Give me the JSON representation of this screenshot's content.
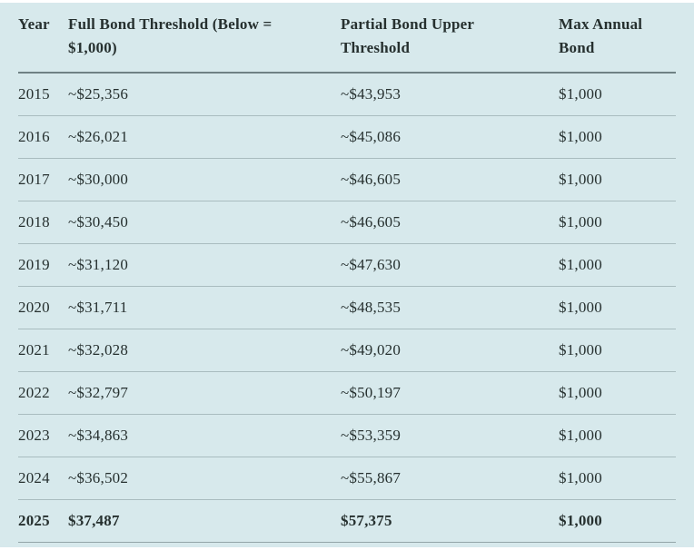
{
  "colors": {
    "background": "#d7e9ec",
    "text": "#26302f",
    "header_rule": "#6f8184",
    "row_rule": "#a9bcbf",
    "bottom_rule": "#93a5a8"
  },
  "table": {
    "columns": [
      {
        "key": "year",
        "label": "Year"
      },
      {
        "key": "full",
        "label": "Full Bond Threshold (Below = $1,000)"
      },
      {
        "key": "partial",
        "label": "Partial Bond Upper Threshold"
      },
      {
        "key": "max",
        "label": "Max Annual Bond"
      }
    ],
    "rows": [
      {
        "cells": [
          "2015",
          "~$25,356",
          "~$43,953",
          "$1,000"
        ],
        "bold": false
      },
      {
        "cells": [
          "2016",
          "~$26,021",
          "~$45,086",
          "$1,000"
        ],
        "bold": false
      },
      {
        "cells": [
          "2017",
          "~$30,000",
          "~$46,605",
          "$1,000"
        ],
        "bold": false
      },
      {
        "cells": [
          "2018",
          "~$30,450",
          "~$46,605",
          "$1,000"
        ],
        "bold": false
      },
      {
        "cells": [
          "2019",
          "~$31,120",
          "~$47,630",
          "$1,000"
        ],
        "bold": false
      },
      {
        "cells": [
          "2020",
          "~$31,711",
          "~$48,535",
          "$1,000"
        ],
        "bold": false
      },
      {
        "cells": [
          "2021",
          "~$32,028",
          "~$49,020",
          "$1,000"
        ],
        "bold": false
      },
      {
        "cells": [
          "2022",
          "~$32,797",
          "~$50,197",
          "$1,000"
        ],
        "bold": false
      },
      {
        "cells": [
          "2023",
          "~$34,863",
          "~$53,359",
          "$1,000"
        ],
        "bold": false
      },
      {
        "cells": [
          "2024",
          "~$36,502",
          "~$55,867",
          "$1,000"
        ],
        "bold": false
      },
      {
        "cells": [
          "2025",
          "$37,487",
          "$57,375",
          "$1,000"
        ],
        "bold": true
      }
    ]
  },
  "chart_data": {
    "type": "table",
    "title": "",
    "columns": [
      "Year",
      "Full Bond Threshold (Below = $1,000)",
      "Partial Bond Upper Threshold",
      "Max Annual Bond"
    ],
    "rows": [
      [
        "2015",
        "~$25,356",
        "~$43,953",
        "$1,000"
      ],
      [
        "2016",
        "~$26,021",
        "~$45,086",
        "$1,000"
      ],
      [
        "2017",
        "~$30,000",
        "~$46,605",
        "$1,000"
      ],
      [
        "2018",
        "~$30,450",
        "~$46,605",
        "$1,000"
      ],
      [
        "2019",
        "~$31,120",
        "~$47,630",
        "$1,000"
      ],
      [
        "2020",
        "~$31,711",
        "~$48,535",
        "$1,000"
      ],
      [
        "2021",
        "~$32,028",
        "~$49,020",
        "$1,000"
      ],
      [
        "2022",
        "~$32,797",
        "~$50,197",
        "$1,000"
      ],
      [
        "2023",
        "~$34,863",
        "~$53,359",
        "$1,000"
      ],
      [
        "2024",
        "~$36,502",
        "~$55,867",
        "$1,000"
      ],
      [
        "2025",
        "$37,487",
        "$57,375",
        "$1,000"
      ]
    ],
    "bold_rows": [
      "2025"
    ],
    "layout_hints": {
      "background": "#d7e9ec",
      "grid": "horizontal-rules-only",
      "approx_values_marked_with": "~"
    }
  }
}
